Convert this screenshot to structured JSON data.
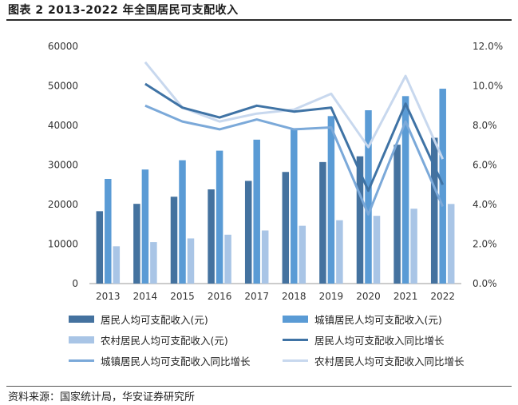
{
  "title": "图表 2 2013-2022 年全国居民可支配收入",
  "source": "资料来源：国家统计局，华安证券研究所",
  "colors": {
    "resident_bar": "#44729f",
    "urban_bar": "#5a9bd5",
    "rural_bar": "#a9c5e6",
    "resident_line": "#3f73a5",
    "urban_line": "#7ba9d9",
    "rural_line": "#c8d8ee"
  },
  "chart_data": {
    "type": "bar",
    "categories": [
      "2013",
      "2014",
      "2015",
      "2016",
      "2017",
      "2018",
      "2019",
      "2020",
      "2021",
      "2022"
    ],
    "y_left": {
      "lim": [
        0,
        60000
      ],
      "ticks": [
        "0",
        "10000",
        "20000",
        "30000",
        "40000",
        "50000",
        "60000"
      ]
    },
    "y_right": {
      "lim": [
        0,
        12
      ],
      "ticks": [
        "0.0%",
        "2.0%",
        "4.0%",
        "6.0%",
        "8.0%",
        "10.0%",
        "12.0%"
      ]
    },
    "bar_series": [
      {
        "name": "居民人均可支配收入(元)",
        "values": [
          18311,
          20167,
          21966,
          23821,
          25974,
          28228,
          30733,
          32189,
          35128,
          36883
        ]
      },
      {
        "name": "城镇居民人均可支配收入(元)",
        "values": [
          26467,
          28844,
          31195,
          33616,
          36396,
          39251,
          42359,
          43834,
          47412,
          49283
        ]
      },
      {
        "name": "农村居民人均可支配收入(元)",
        "values": [
          9430,
          10489,
          11422,
          12363,
          13432,
          14617,
          16021,
          17131,
          18931,
          20133
        ]
      }
    ],
    "line_series": [
      {
        "name": "居民人均可支配收入同比增长",
        "x_start": 1,
        "values": [
          10.1,
          8.9,
          8.4,
          9.0,
          8.7,
          8.9,
          4.7,
          9.1,
          5.0
        ]
      },
      {
        "name": "城镇居民人均可支配收入同比增长",
        "x_start": 1,
        "values": [
          9.0,
          8.2,
          7.8,
          8.3,
          7.8,
          7.9,
          3.5,
          8.2,
          3.9
        ]
      },
      {
        "name": "农村居民人均可支配收入同比增长",
        "x_start": 1,
        "values": [
          11.2,
          8.9,
          8.2,
          8.6,
          8.8,
          9.6,
          6.9,
          10.5,
          6.3
        ]
      }
    ],
    "legend": [
      {
        "label": "居民人均可支配收入(元)",
        "kind": "bar",
        "color_key": "resident_bar"
      },
      {
        "label": "城镇居民人均可支配收入(元)",
        "kind": "bar",
        "color_key": "urban_bar"
      },
      {
        "label": "农村居民人均可支配收入(元)",
        "kind": "bar",
        "color_key": "rural_bar"
      },
      {
        "label": "居民人均可支配收入同比增长",
        "kind": "line",
        "color_key": "resident_line"
      },
      {
        "label": "城镇居民人均可支配收入同比增长",
        "kind": "line",
        "color_key": "urban_line"
      },
      {
        "label": "农村居民人均可支配收入同比增长",
        "kind": "line",
        "color_key": "rural_line"
      }
    ],
    "legend_position": "bottom",
    "grid": false
  }
}
